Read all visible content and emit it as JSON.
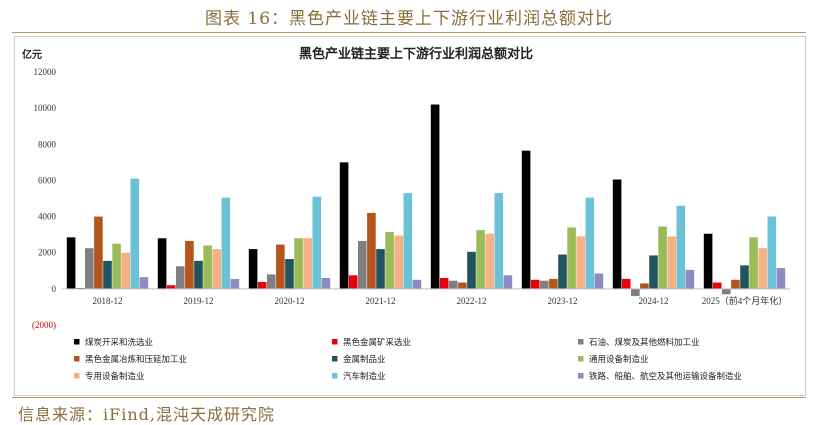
{
  "figure_title": "图表 16：黑色产业链主要上下游行业利润总额对比",
  "source": "信息来源：iFind,混沌天成研究院",
  "chart_data": {
    "type": "bar",
    "title": "黑色产业链主要上下游行业利润总额对比",
    "ylabel": "亿元",
    "ylim": [
      -2000,
      12000
    ],
    "yticks": [
      -2000,
      0,
      2000,
      4000,
      6000,
      8000,
      10000,
      12000
    ],
    "ytick_labels": [
      "(2000)",
      "0",
      "2000",
      "4000",
      "6000",
      "8000",
      "10000",
      "12000"
    ],
    "grid": false,
    "legend_position": "bottom",
    "categories": [
      "2018-12",
      "2019-12",
      "2020-12",
      "2021-12",
      "2022-12",
      "2023-12",
      "2024-12",
      "2025（前4个月年化）"
    ],
    "series": [
      {
        "name": "煤炭开采和洗选业",
        "color": "#000000",
        "values": [
          2850,
          2800,
          2200,
          7000,
          10200,
          7650,
          6050,
          3050
        ]
      },
      {
        "name": "黑色金属矿采选业",
        "color": "#e8000b",
        "values": [
          50,
          200,
          380,
          750,
          600,
          500,
          550,
          350
        ]
      },
      {
        "name": "石油、煤炭及其他燃料加工业",
        "color": "#7f7f7f",
        "values": [
          2250,
          1250,
          800,
          2650,
          450,
          450,
          -400,
          -300
        ]
      },
      {
        "name": "黑色金属冶炼和压延加工业",
        "color": "#b5541d",
        "values": [
          4000,
          2650,
          2450,
          4200,
          350,
          550,
          300,
          500
        ]
      },
      {
        "name": "金属制品业",
        "color": "#21545f",
        "values": [
          1550,
          1550,
          1650,
          2200,
          2050,
          1900,
          1850,
          1300
        ]
      },
      {
        "name": "通用设备制造业",
        "color": "#9bbb59",
        "values": [
          2500,
          2400,
          2800,
          3150,
          3250,
          3400,
          3450,
          2850
        ]
      },
      {
        "name": "专用设备制造业",
        "color": "#f4b183",
        "values": [
          2000,
          2200,
          2800,
          2950,
          3050,
          2900,
          2900,
          2250
        ]
      },
      {
        "name": "汽车制造业",
        "color": "#6bc1d6",
        "values": [
          6100,
          5050,
          5100,
          5300,
          5300,
          5050,
          4600,
          4000
        ]
      },
      {
        "name": "铁路、船舶、航空及其他运输设备制造业",
        "color": "#8c8cc2",
        "values": [
          650,
          550,
          600,
          500,
          750,
          850,
          1050,
          1150
        ]
      }
    ]
  }
}
